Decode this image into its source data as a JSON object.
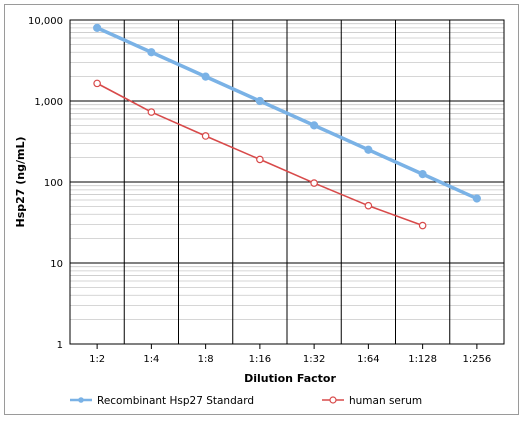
{
  "chart_data": {
    "type": "line",
    "xlabel": "Dilution Factor",
    "ylabel": "Hsp27 (ng/mL)",
    "categories": [
      "1:2",
      "1:4",
      "1:8",
      "1:16",
      "1:32",
      "1:64",
      "1:128",
      "1:256"
    ],
    "y_scale": "log",
    "ylim": [
      1,
      10000
    ],
    "y_ticks": [
      1,
      10,
      100,
      1000,
      10000
    ],
    "y_tick_labels": [
      "1",
      "10",
      "100",
      "1,000",
      "10,000"
    ],
    "grid": true,
    "legend_position": "bottom",
    "series": [
      {
        "name": "Recombinant Hsp27 Standard",
        "color": "#7ab2e6",
        "marker": "filled-circle",
        "values": [
          8000,
          4000,
          2000,
          1000,
          500,
          250,
          125,
          62.5
        ]
      },
      {
        "name": "human serum",
        "color": "#d84a4a",
        "marker": "open-circle",
        "values": [
          1650,
          730,
          370,
          190,
          97,
          51,
          29,
          null
        ]
      }
    ]
  }
}
